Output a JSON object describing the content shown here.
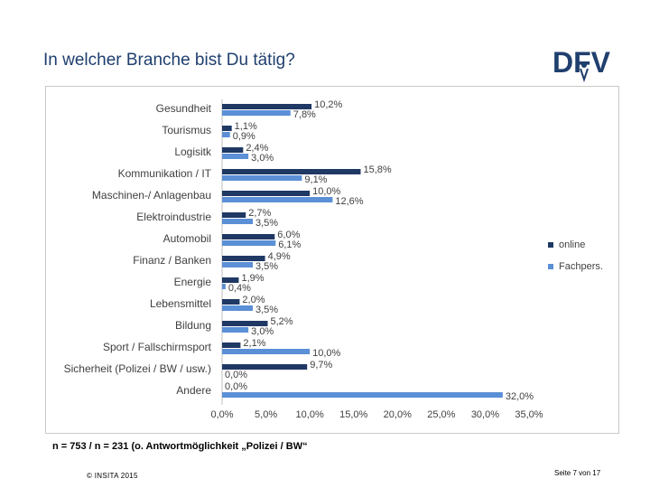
{
  "slide": {
    "title": "In welcher Branche bist Du tätig?",
    "footnote": "n = 753 / n = 231 (o. Antwortmöglichkeit „Polizei / BW“",
    "copyright": "© INSITA 2015",
    "page": "Seite 7 von 17"
  },
  "logo": {
    "text": "DFV"
  },
  "colors": {
    "online": "#1f3864",
    "fachpers": "#5b8fd6",
    "brand": "#1f3f6e"
  },
  "chart_data": {
    "type": "bar",
    "orientation": "horizontal",
    "categories": [
      "Gesundheit",
      "Tourismus",
      "Logisitk",
      "Kommunikation / IT",
      "Maschinen-/ Anlagenbau",
      "Elektroindustrie",
      "Automobil",
      "Finanz / Banken",
      "Energie",
      "Lebensmittel",
      "Bildung",
      "Sport / Fallschirmsport",
      "Sicherheit (Polizei / BW / usw.)",
      "Andere"
    ],
    "series": [
      {
        "name": "online",
        "values": [
          10.2,
          1.1,
          2.4,
          15.8,
          10.0,
          2.7,
          6.0,
          4.9,
          1.9,
          2.0,
          5.2,
          2.1,
          9.7,
          0.0
        ],
        "labels": [
          "10,2%",
          "1,1%",
          "2,4%",
          "15,8%",
          "10,0%",
          "2,7%",
          "6,0%",
          "4,9%",
          "1,9%",
          "2,0%",
          "5,2%",
          "2,1%",
          "9,7%",
          "0,0%"
        ]
      },
      {
        "name": "Fachpers.",
        "values": [
          7.8,
          0.9,
          3.0,
          9.1,
          12.6,
          3.5,
          6.1,
          3.5,
          0.4,
          3.5,
          3.0,
          10.0,
          0.0,
          32.0
        ],
        "labels": [
          "7,8%",
          "0,9%",
          "3,0%",
          "9,1%",
          "12,6%",
          "3,5%",
          "6,1%",
          "3,5%",
          "0,4%",
          "3,5%",
          "3,0%",
          "10,0%",
          "0,0%",
          "32,0%"
        ]
      }
    ],
    "xlim": [
      0,
      35
    ],
    "xticks": [
      "0,0%",
      "5,0%",
      "10,0%",
      "15,0%",
      "20,0%",
      "25,0%",
      "30,0%",
      "35,0%"
    ],
    "legend": "right",
    "grid": false
  }
}
